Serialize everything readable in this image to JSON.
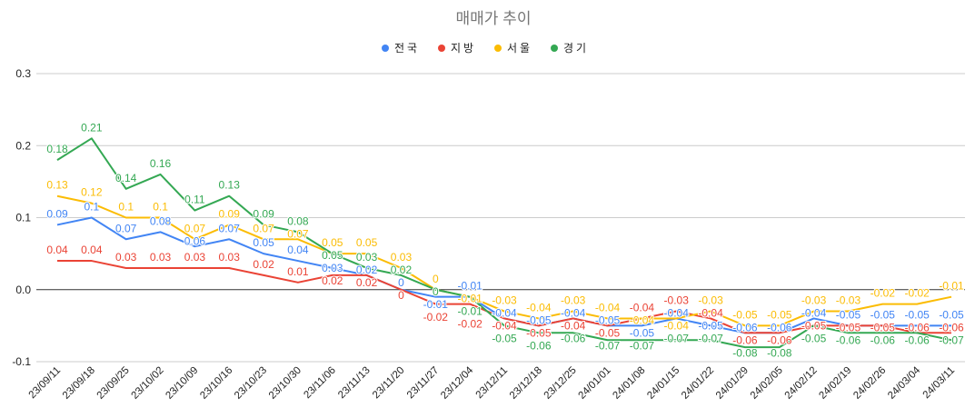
{
  "chart_data": {
    "type": "line",
    "title": "매매가 추이",
    "xlabel": "",
    "ylabel": "",
    "ylim": [
      -0.1,
      0.3
    ],
    "yticks": [
      "0.3",
      "0.2",
      "0.1",
      "0.0",
      "-0.1"
    ],
    "grid": true,
    "legend_position": "top",
    "categories": [
      "23/09/11",
      "23/09/18",
      "23/09/25",
      "23/10/02",
      "23/10/09",
      "23/10/16",
      "23/10/23",
      "23/10/30",
      "23/11/06",
      "23/11/13",
      "23/11/20",
      "23/11/27",
      "23/12/04",
      "23/12/11",
      "23/12/18",
      "23/12/25",
      "24/01/01",
      "24/01/08",
      "24/01/15",
      "24/01/22",
      "24/01/29",
      "24/02/05",
      "24/02/12",
      "24/02/19",
      "24/02/26",
      "24/03/04",
      "24/03/11"
    ],
    "series": [
      {
        "name": "전국",
        "color": "#4285f4",
        "values": [
          0.09,
          0.1,
          0.07,
          0.08,
          0.06,
          0.07,
          0.05,
          0.04,
          0.03,
          0.02,
          0,
          -0.01,
          -0.01,
          -0.04,
          -0.05,
          -0.04,
          -0.05,
          -0.05,
          -0.04,
          -0.05,
          -0.06,
          -0.06,
          -0.04,
          -0.05,
          -0.05,
          -0.05,
          -0.05
        ]
      },
      {
        "name": "지방",
        "color": "#ea4335",
        "values": [
          0.04,
          0.04,
          0.03,
          0.03,
          0.03,
          0.03,
          0.02,
          0.01,
          0.02,
          0.02,
          0,
          -0.02,
          -0.02,
          -0.04,
          -0.05,
          -0.04,
          -0.05,
          -0.04,
          -0.03,
          -0.04,
          -0.06,
          -0.06,
          -0.05,
          -0.05,
          -0.05,
          -0.06,
          -0.06
        ]
      },
      {
        "name": "서울",
        "color": "#fbbc04",
        "values": [
          0.13,
          0.12,
          0.1,
          0.1,
          0.07,
          0.09,
          0.07,
          0.07,
          0.05,
          0.05,
          0.03,
          0,
          -0.01,
          -0.03,
          -0.04,
          -0.03,
          -0.04,
          -0.04,
          -0.04,
          -0.03,
          -0.05,
          -0.05,
          -0.03,
          -0.03,
          -0.02,
          -0.02,
          -0.01
        ]
      },
      {
        "name": "경기",
        "color": "#34a853",
        "values": [
          0.18,
          0.21,
          0.14,
          0.16,
          0.11,
          0.13,
          0.09,
          0.08,
          0.05,
          0.03,
          0.02,
          0,
          -0.01,
          -0.05,
          -0.06,
          -0.06,
          -0.07,
          -0.07,
          -0.07,
          -0.07,
          -0.08,
          -0.08,
          -0.05,
          -0.06,
          -0.06,
          -0.06,
          -0.07
        ]
      }
    ]
  }
}
